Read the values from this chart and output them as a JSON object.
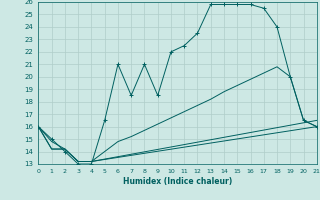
{
  "xlabel": "Humidex (Indice chaleur)",
  "bg_color": "#cde8e4",
  "grid_color": "#b0cec9",
  "line_color": "#006060",
  "xlim": [
    0,
    21
  ],
  "ylim": [
    13,
    26
  ],
  "xticks": [
    0,
    1,
    2,
    3,
    4,
    5,
    6,
    7,
    8,
    9,
    10,
    11,
    12,
    13,
    14,
    15,
    16,
    17,
    18,
    19,
    20,
    21
  ],
  "yticks": [
    13,
    14,
    15,
    16,
    17,
    18,
    19,
    20,
    21,
    22,
    23,
    24,
    25,
    26
  ],
  "curve1_x": [
    0,
    1,
    2,
    3,
    4,
    5,
    6,
    7,
    8,
    9,
    10,
    11,
    12,
    13,
    14,
    15,
    16,
    17,
    18,
    19,
    20,
    21
  ],
  "curve1_y": [
    16,
    15,
    14,
    13,
    13,
    16.5,
    21,
    18.5,
    21,
    18.5,
    22,
    22.5,
    23.5,
    25.8,
    25.8,
    25.8,
    25.8,
    25.5,
    24,
    20,
    16.5,
    16
  ],
  "curve2_x": [
    0,
    1,
    2,
    3,
    4,
    5,
    6,
    7,
    8,
    9,
    10,
    11,
    12,
    13,
    14,
    15,
    16,
    17,
    18,
    19,
    20,
    21
  ],
  "curve2_y": [
    16,
    14.2,
    14.2,
    13.2,
    13.2,
    14,
    14.8,
    15.2,
    15.7,
    16.2,
    16.7,
    17.2,
    17.7,
    18.2,
    18.8,
    19.3,
    19.8,
    20.3,
    20.8,
    20,
    16.5,
    16
  ],
  "curve3_x": [
    0,
    1,
    2,
    3,
    4,
    21
  ],
  "curve3_y": [
    16,
    14.8,
    14.2,
    13.2,
    13.2,
    16.5
  ],
  "curve4_x": [
    0,
    1,
    2,
    3,
    4,
    21
  ],
  "curve4_y": [
    16,
    14.2,
    14.2,
    13.2,
    13.2,
    16
  ]
}
